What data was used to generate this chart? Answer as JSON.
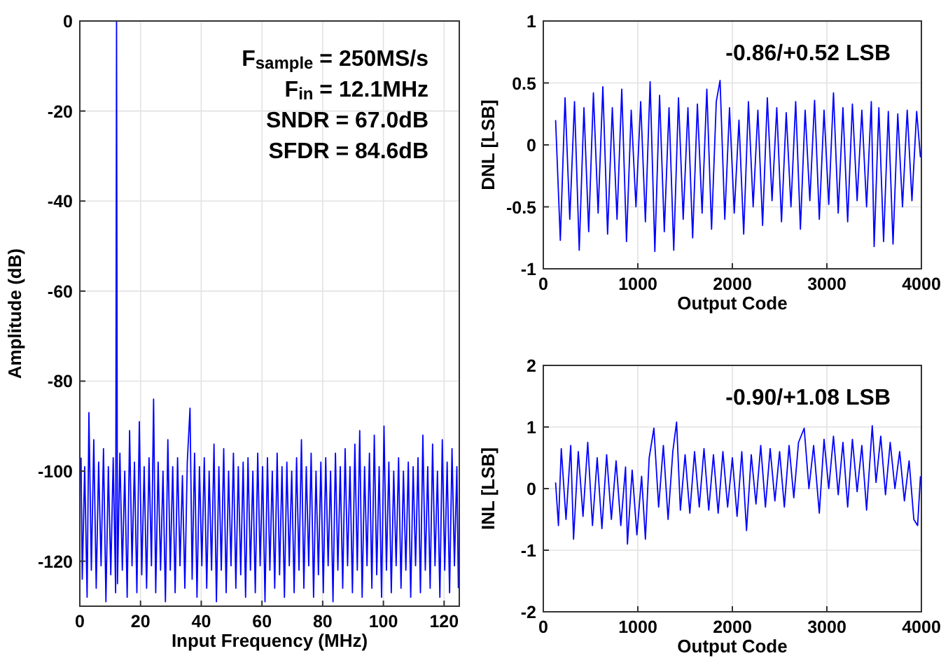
{
  "chart_data": [
    {
      "type": "line",
      "xlabel": "Input Frequency (MHz)",
      "ylabel": "Amplitude (dB)",
      "xlim": [
        0,
        125
      ],
      "ylim": [
        -130,
        0
      ],
      "xticks": [
        0,
        20,
        40,
        60,
        80,
        100,
        120
      ],
      "yticks": [
        -120,
        -100,
        -80,
        -60,
        -40,
        -20,
        0
      ],
      "grid": true,
      "annotations": [
        "F$_{sample}$ = 250MS/s",
        "F$_{in}$ = 12.1MHz",
        "SNDR = 67.0dB",
        "SFDR = 84.6dB"
      ],
      "series": [
        {
          "color": "#0000ff",
          "x": [
            0.4,
            0.8,
            1.6,
            2.4,
            3,
            3.8,
            4.6,
            5.4,
            6.2,
            7,
            7.8,
            8.6,
            9.4,
            10.2,
            11,
            11.8,
            12.1,
            12.4,
            13.2,
            14,
            14.8,
            15.6,
            16.4,
            17.2,
            18,
            18.8,
            19.6,
            20.4,
            21.2,
            22,
            22.8,
            23.6,
            24.3,
            25,
            25.8,
            26.6,
            27.4,
            28.2,
            29,
            29.8,
            30.6,
            31.4,
            32.2,
            33,
            33.8,
            34.6,
            35.4,
            36.3,
            37,
            37.8,
            38.6,
            39.4,
            40.2,
            41,
            41.8,
            42.6,
            43.4,
            44.2,
            45,
            45.8,
            46.6,
            47.4,
            48.2,
            49,
            49.8,
            50.6,
            51.4,
            52.2,
            53,
            53.8,
            54.6,
            55.4,
            56.2,
            57,
            57.8,
            58.6,
            59.4,
            60.2,
            61,
            61.8,
            62.6,
            63.4,
            64.2,
            65,
            65.8,
            66.6,
            67.4,
            68.2,
            69,
            69.8,
            70.6,
            71.4,
            72.2,
            73,
            73.8,
            74.6,
            75.4,
            76.2,
            77,
            77.8,
            78.6,
            79.4,
            80.2,
            81,
            81.8,
            82.6,
            83.4,
            84.2,
            85,
            85.8,
            86.6,
            87.4,
            88.2,
            89,
            89.8,
            90.6,
            91.4,
            92.2,
            93,
            93.8,
            94.6,
            95.4,
            96.2,
            97,
            97.8,
            98.6,
            99.4,
            100.2,
            101,
            101.8,
            102.6,
            103.4,
            104.2,
            105,
            105.8,
            106.6,
            107.4,
            108.2,
            109,
            109.8,
            110.6,
            111.4,
            112.2,
            113,
            113.8,
            114.6,
            115.4,
            116.2,
            117,
            117.8,
            118.6,
            119.4,
            120.2,
            121,
            121.8,
            122.6,
            123.4,
            124.2,
            124.7
          ],
          "values": [
            -97,
            -124,
            -99,
            -128,
            -87,
            -122,
            -93,
            -126,
            -98,
            -121,
            -95,
            -129,
            -99,
            -123,
            -97,
            -127,
            0,
            -125,
            -96,
            -122,
            -100,
            -128,
            -91,
            -121,
            -98,
            -127,
            -89,
            -123,
            -99,
            -126,
            -97,
            -121,
            -84,
            -127,
            -98,
            -122,
            -100,
            -129,
            -93,
            -122,
            -99,
            -127,
            -97,
            -121,
            -101,
            -126,
            -98,
            -86,
            -124,
            -96,
            -128,
            -99,
            -121,
            -97,
            -126,
            -100,
            -122,
            -94,
            -129,
            -99,
            -122,
            -95,
            -127,
            -100,
            -121,
            -96,
            -126,
            -99,
            -123,
            -98,
            -128,
            -97,
            -122,
            -100,
            -127,
            -96,
            -121,
            -99,
            -129,
            -97,
            -122,
            -100,
            -126,
            -96,
            -123,
            -99,
            -128,
            -98,
            -121,
            -100,
            -127,
            -97,
            -122,
            -93,
            -126,
            -99,
            -121,
            -96,
            -128,
            -100,
            -123,
            -98,
            -127,
            -97,
            -121,
            -100,
            -129,
            -96,
            -122,
            -99,
            -126,
            -95,
            -121,
            -99,
            -127,
            -94,
            -122,
            -91,
            -128,
            -99,
            -121,
            -96,
            -126,
            -92,
            -123,
            -99,
            -128,
            -90,
            -122,
            -98,
            -127,
            -100,
            -121,
            -97,
            -126,
            -100,
            -122,
            -98,
            -128,
            -99,
            -121,
            -97,
            -127,
            -92,
            -122,
            -99,
            -126,
            -94,
            -121,
            -100,
            -128,
            -93,
            -122,
            -98,
            -127,
            -95,
            -121,
            -99,
            -126
          ]
        }
      ]
    },
    {
      "type": "line",
      "xlabel": "Output Code",
      "ylabel": "DNL [LSB]",
      "xlim": [
        0,
        4000
      ],
      "ylim": [
        -1,
        1
      ],
      "xticks": [
        0,
        1000,
        2000,
        3000,
        4000
      ],
      "yticks": [
        -1,
        -0.5,
        0,
        0.5,
        1
      ],
      "grid": true,
      "annotations": [
        "-0.86/+0.52 LSB"
      ],
      "series": [
        {
          "color": "#0000ff",
          "x": [
            130,
            180,
            230,
            280,
            330,
            380,
            430,
            480,
            530,
            580,
            630,
            680,
            730,
            780,
            830,
            880,
            930,
            980,
            1030,
            1080,
            1130,
            1180,
            1230,
            1280,
            1330,
            1380,
            1430,
            1480,
            1530,
            1580,
            1630,
            1680,
            1730,
            1780,
            1830,
            1870,
            1920,
            1970,
            2020,
            2070,
            2120,
            2170,
            2220,
            2270,
            2320,
            2370,
            2420,
            2470,
            2520,
            2570,
            2620,
            2670,
            2720,
            2770,
            2820,
            2870,
            2920,
            2970,
            3020,
            3070,
            3120,
            3170,
            3220,
            3270,
            3320,
            3370,
            3420,
            3470,
            3500,
            3550,
            3600,
            3650,
            3700,
            3750,
            3800,
            3850,
            3900,
            3950,
            3990
          ],
          "values": [
            0.2,
            -0.77,
            0.38,
            -0.6,
            0.35,
            -0.85,
            0.3,
            -0.7,
            0.42,
            -0.55,
            0.47,
            -0.72,
            0.3,
            -0.6,
            0.45,
            -0.78,
            0.28,
            -0.5,
            0.35,
            -0.62,
            0.51,
            -0.86,
            0.4,
            -0.7,
            0.3,
            -0.85,
            0.38,
            -0.6,
            0.3,
            -0.75,
            0.33,
            -0.55,
            0.45,
            -0.68,
            0.35,
            0.52,
            -0.6,
            0.3,
            -0.55,
            0.2,
            -0.72,
            0.35,
            -0.5,
            0.28,
            -0.65,
            0.38,
            -0.45,
            0.3,
            -0.62,
            0.26,
            -0.5,
            0.35,
            -0.68,
            0.28,
            -0.45,
            0.36,
            -0.6,
            0.28,
            -0.48,
            0.42,
            -0.55,
            0.3,
            -0.62,
            0.33,
            -0.45,
            0.28,
            -0.5,
            0.35,
            -0.82,
            0.3,
            -0.78,
            0.27,
            -0.8,
            0.25,
            -0.5,
            0.28,
            -0.45,
            0.27,
            -0.1
          ]
        }
      ]
    },
    {
      "type": "line",
      "xlabel": "Output Code",
      "ylabel": "INL [LSB]",
      "xlim": [
        0,
        4000
      ],
      "ylim": [
        -2,
        2
      ],
      "xticks": [
        0,
        1000,
        2000,
        3000,
        4000
      ],
      "yticks": [
        -2,
        -1,
        0,
        1,
        2
      ],
      "grid": true,
      "annotations": [
        "-0.90/+1.08 LSB"
      ],
      "series": [
        {
          "color": "#0000ff",
          "x": [
            130,
            160,
            190,
            240,
            290,
            320,
            370,
            420,
            470,
            520,
            570,
            620,
            670,
            720,
            770,
            820,
            870,
            890,
            940,
            990,
            1040,
            1080,
            1120,
            1170,
            1220,
            1270,
            1320,
            1370,
            1410,
            1450,
            1500,
            1550,
            1600,
            1650,
            1700,
            1750,
            1800,
            1850,
            1900,
            1950,
            2000,
            2050,
            2100,
            2150,
            2200,
            2250,
            2300,
            2350,
            2400,
            2450,
            2500,
            2550,
            2600,
            2650,
            2700,
            2760,
            2810,
            2860,
            2920,
            2970,
            3020,
            3070,
            3120,
            3170,
            3220,
            3270,
            3320,
            3370,
            3420,
            3480,
            3520,
            3570,
            3620,
            3670,
            3720,
            3770,
            3820,
            3870,
            3920,
            3960,
            3990
          ],
          "values": [
            0.1,
            -0.6,
            0.65,
            -0.5,
            0.7,
            -0.82,
            0.6,
            -0.45,
            0.75,
            -0.6,
            0.5,
            -0.65,
            0.55,
            -0.5,
            0.45,
            -0.6,
            0.35,
            -0.9,
            0.3,
            -0.75,
            0.2,
            -0.82,
            0.5,
            0.98,
            -0.3,
            0.7,
            -0.5,
            0.6,
            1.08,
            -0.35,
            0.55,
            -0.4,
            0.6,
            -0.3,
            0.65,
            -0.35,
            0.55,
            -0.4,
            0.6,
            -0.3,
            0.5,
            -0.45,
            0.6,
            -0.68,
            0.55,
            -0.25,
            0.7,
            -0.3,
            0.65,
            -0.2,
            0.6,
            -0.3,
            0.7,
            -0.15,
            0.75,
            0.98,
            0,
            0.7,
            -0.4,
            0.8,
            0,
            0.85,
            -0.1,
            0.75,
            -0.3,
            0.8,
            -0.05,
            0.7,
            -0.35,
            1.02,
            0.1,
            0.85,
            -0.1,
            0.75,
            0,
            0.6,
            -0.2,
            0.45,
            -0.5,
            -0.6,
            0.2
          ]
        }
      ]
    }
  ]
}
